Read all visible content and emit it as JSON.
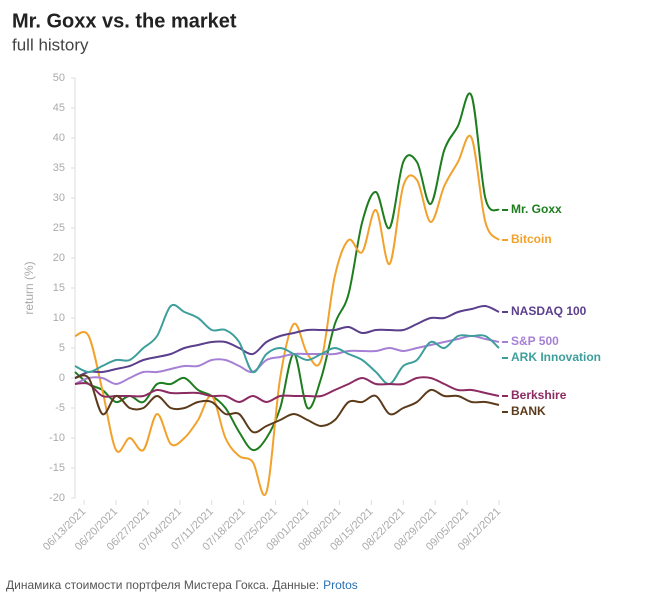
{
  "chart_data": {
    "type": "line",
    "title": "Mr. Goxx vs. the market",
    "subtitle": "full history",
    "y_label": "return (%)",
    "x": [
      "06/11/2021",
      "06/14/2021",
      "06/17/2021",
      "06/20/2021",
      "06/23/2021",
      "06/26/2021",
      "06/29/2021",
      "07/02/2021",
      "07/05/2021",
      "07/08/2021",
      "07/11/2021",
      "07/14/2021",
      "07/17/2021",
      "07/20/2021",
      "07/23/2021",
      "07/26/2021",
      "07/29/2021",
      "08/01/2021",
      "08/04/2021",
      "08/07/2021",
      "08/10/2021",
      "08/13/2021",
      "08/16/2021",
      "08/19/2021",
      "08/22/2021",
      "08/25/2021",
      "08/28/2021",
      "08/31/2021",
      "09/03/2021",
      "09/06/2021",
      "09/09/2021",
      "09/12/2021"
    ],
    "xlim": [
      "06/11/2021",
      "09/12/2021"
    ],
    "xticks": [
      "06/13/2021",
      "06/20/2021",
      "06/27/2021",
      "07/04/2021",
      "07/11/2021",
      "07/18/2021",
      "07/25/2021",
      "08/01/2021",
      "08/08/2021",
      "08/15/2021",
      "08/22/2021",
      "08/29/2021",
      "09/05/2021",
      "09/12/2021"
    ],
    "ylim": [
      -20,
      50
    ],
    "yticks": [
      -20,
      -15,
      -10,
      -5,
      0,
      5,
      10,
      15,
      20,
      25,
      30,
      35,
      40,
      45,
      50
    ],
    "series": [
      {
        "name": "Mr. Goxx",
        "color": "#1e7d1e",
        "values": [
          1,
          -1,
          -2,
          -4,
          -3,
          -4,
          -1,
          -1,
          0,
          -2,
          -3,
          -5,
          -9,
          -12,
          -10,
          -5,
          4,
          -5,
          0,
          9,
          14,
          26,
          31,
          25,
          36,
          36,
          29,
          38,
          42,
          47,
          30,
          28
        ]
      },
      {
        "name": "Bitcoin",
        "color": "#f2a22c",
        "values": [
          7,
          7,
          -2,
          -12,
          -10,
          -12,
          -6,
          -11,
          -10,
          -7,
          -3,
          -10,
          -13,
          -14,
          -19,
          0,
          9,
          4,
          3,
          17,
          23,
          21,
          28,
          19,
          32,
          33,
          26,
          32,
          36,
          40,
          26,
          23
        ]
      },
      {
        "name": "NASDAQ 100",
        "color": "#5b3f8c",
        "values": [
          0,
          1,
          1,
          1.5,
          2,
          3,
          3.5,
          4,
          5,
          5.5,
          6,
          6,
          5,
          4,
          6,
          7,
          7.5,
          8,
          8,
          8,
          8.5,
          7.5,
          8,
          8,
          8,
          9,
          10,
          10,
          11,
          11.5,
          12,
          11
        ]
      },
      {
        "name": "S&P 500",
        "color": "#a680d4",
        "values": [
          -1,
          0,
          0,
          -1,
          0,
          1,
          1,
          1.5,
          2,
          2,
          3,
          3,
          2,
          1,
          3,
          3.5,
          4,
          4,
          4,
          4,
          4.5,
          4.5,
          4.5,
          5,
          4.5,
          5,
          5.5,
          6,
          6.5,
          7,
          6.5,
          6
        ]
      },
      {
        "name": "ARK Innovation",
        "color": "#3d9f9c",
        "values": [
          2,
          1,
          2,
          3,
          3,
          5,
          7,
          12,
          11,
          10,
          8,
          8,
          6,
          1,
          4,
          5,
          4,
          3,
          4,
          5,
          4,
          3,
          1,
          -1,
          2,
          3,
          6,
          5,
          7,
          7,
          7,
          5
        ]
      },
      {
        "name": "Berkshire",
        "color": "#8c2b61",
        "values": [
          -1,
          -1,
          -3,
          -3,
          -3,
          -3,
          -2,
          -2.5,
          -2.5,
          -2.5,
          -3,
          -3,
          -4,
          -3,
          -4,
          -3,
          -3,
          -3,
          -3,
          -2,
          -1,
          0,
          -1,
          -1,
          -1,
          0,
          0,
          -1,
          -2,
          -2,
          -2.5,
          -3
        ]
      },
      {
        "name": "BANK",
        "color": "#5c3b1c",
        "values": [
          0,
          0,
          -6,
          -3,
          -5,
          -5,
          -3,
          -5,
          -5,
          -4,
          -4,
          -6,
          -6,
          -9,
          -8,
          -7,
          -6,
          -7,
          -8,
          -7,
          -4,
          -4,
          -3,
          -6,
          -5,
          -4,
          -2,
          -3,
          -3,
          -4,
          -4,
          -4.5
        ]
      }
    ]
  },
  "footer": {
    "caption": "Динамика стоимости портфеля Мистера Гокса. Данные:",
    "source": "Protos"
  }
}
